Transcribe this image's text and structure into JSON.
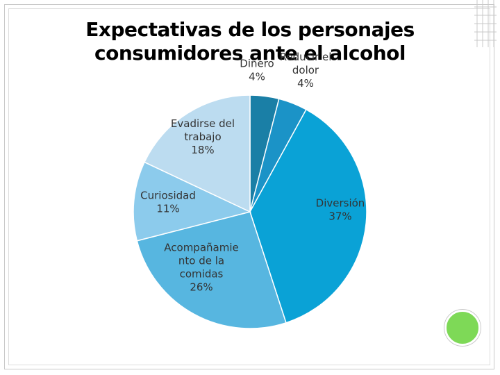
{
  "title_line1": "Expectativas de los personajes",
  "title_line2": "consumidores ante el alcohol",
  "chart_data": {
    "type": "pie",
    "title": "Expectativas de los personajes consumidores ante el alcohol",
    "categories": [
      "Dinero",
      "Reducir el dolor",
      "Diversión",
      "Acompañamiento de la comidas",
      "Curiosidad",
      "Evadirse del trabajo"
    ],
    "values": [
      4,
      4,
      37,
      26,
      11,
      18
    ],
    "colors": [
      "#1a7fa6",
      "#1b93c7",
      "#0aa2d6",
      "#57b6e0",
      "#8ccbec",
      "#bcdcf0"
    ],
    "labels": [
      {
        "lines": [
          "Dinero",
          "4%"
        ]
      },
      {
        "lines": [
          "Reducir el",
          "dolor",
          "4%"
        ]
      },
      {
        "lines": [
          "Diversión",
          "37%"
        ]
      },
      {
        "lines": [
          "Acompañamie",
          "nto de la",
          "comidas",
          "26%"
        ]
      },
      {
        "lines": [
          "Curiosidad",
          "11%"
        ]
      },
      {
        "lines": [
          "Evadirse del",
          "trabajo",
          "18%"
        ]
      }
    ]
  }
}
